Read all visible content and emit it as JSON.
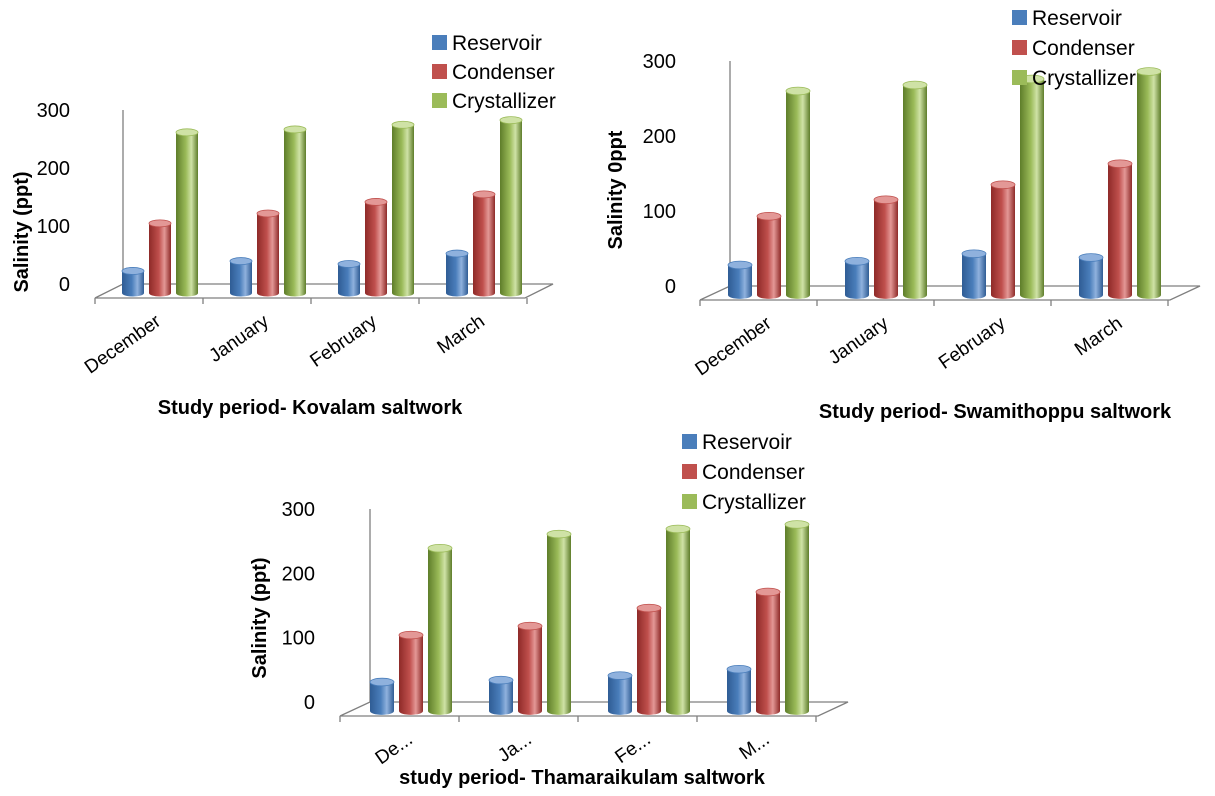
{
  "colors": {
    "Reservoir": [
      "#2f5c94",
      "#4a7ebb",
      "#8fb1dd"
    ],
    "Condenser": [
      "#8e2a28",
      "#c0504d",
      "#e39896"
    ],
    "Crystallizer": [
      "#5e7d2a",
      "#9bbb59",
      "#cfe2a6"
    ]
  },
  "chart_data": [
    {
      "type": "bar",
      "categories": [
        "December",
        "January",
        "February",
        "March"
      ],
      "series": [
        {
          "name": "Reservoir",
          "values": [
            38,
            55,
            50,
            68
          ]
        },
        {
          "name": "Condenser",
          "values": [
            120,
            137,
            157,
            170
          ]
        },
        {
          "name": "Crystallizer",
          "values": [
            277,
            282,
            290,
            298
          ]
        }
      ],
      "xlabel": "Study period- Kovalam saltwork",
      "ylabel": "Salinity (ppt)",
      "ylim": [
        0,
        300
      ],
      "yticks": [
        0,
        100,
        200,
        300
      ],
      "legend": "top-right"
    },
    {
      "type": "bar",
      "categories": [
        "December",
        "January",
        "February",
        "March"
      ],
      "series": [
        {
          "name": "Reservoir",
          "values": [
            40,
            45,
            55,
            50
          ]
        },
        {
          "name": "Condenser",
          "values": [
            105,
            127,
            147,
            175
          ]
        },
        {
          "name": "Crystallizer",
          "values": [
            272,
            280,
            288,
            298
          ]
        }
      ],
      "xlabel": "Study period- Swamithoppu saltwork",
      "ylabel": "Salinity 0ppt",
      "ylim": [
        0,
        300
      ],
      "yticks": [
        0,
        100,
        200,
        300
      ],
      "legend": "top-right"
    },
    {
      "type": "bar",
      "categories": [
        "De...",
        "Ja...",
        "Fe...",
        "M..."
      ],
      "series": [
        {
          "name": "Reservoir",
          "values": [
            45,
            48,
            55,
            65
          ]
        },
        {
          "name": "Condenser",
          "values": [
            118,
            132,
            160,
            185
          ]
        },
        {
          "name": "Crystallizer",
          "values": [
            253,
            275,
            283,
            290
          ]
        }
      ],
      "xlabel": "study period- Thamaraikulam saltwork",
      "ylabel": "Salinity (ppt)",
      "ylim": [
        0,
        300
      ],
      "yticks": [
        0,
        100,
        200,
        300
      ],
      "legend": "top-right"
    }
  ]
}
